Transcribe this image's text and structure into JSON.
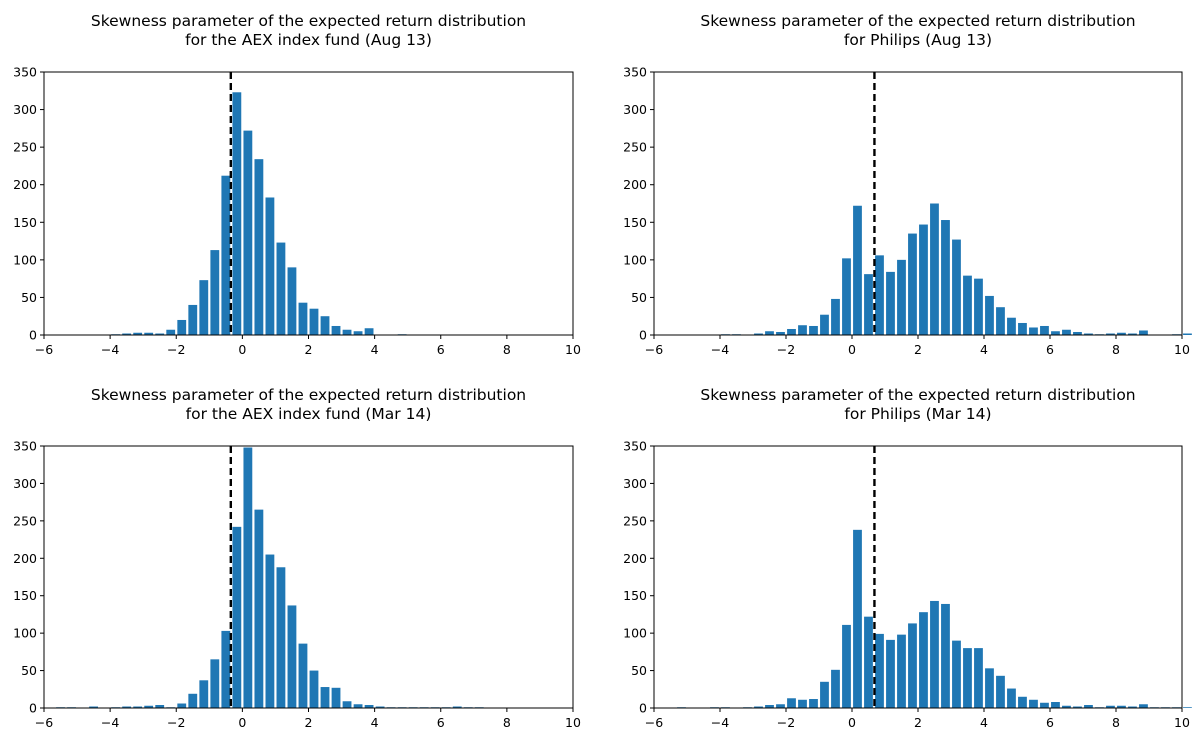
{
  "chart_data": [
    {
      "type": "bar",
      "title": "Skewness parameter of the expected return distribution\nfor the AEX index fund (Aug 13)",
      "xlabel": "",
      "ylabel": "",
      "xlim": [
        -6,
        10
      ],
      "ylim": [
        0,
        350
      ],
      "xticks": [
        -6,
        -4,
        -2,
        0,
        2,
        4,
        6,
        8,
        10
      ],
      "yticks": [
        0,
        50,
        100,
        150,
        200,
        250,
        300,
        350
      ],
      "bar_color": "#1f77b4",
      "bin_start": -6,
      "bin_width": 0.3333,
      "values": [
        0,
        0,
        0,
        0,
        0,
        0,
        1,
        2,
        3,
        3,
        2,
        7,
        20,
        40,
        73,
        113,
        212,
        323,
        272,
        234,
        183,
        123,
        90,
        43,
        35,
        25,
        12,
        7,
        5,
        9,
        0,
        0,
        1,
        0,
        0,
        0,
        0,
        0,
        0,
        0,
        0,
        0,
        0,
        0,
        0,
        0,
        0,
        0
      ],
      "reference_line": {
        "x": -0.35,
        "style": "dashed",
        "color": "#000000"
      }
    },
    {
      "type": "bar",
      "title": "Skewness parameter of the expected return distribution\nfor Philips (Aug 13)",
      "xlabel": "",
      "ylabel": "",
      "xlim": [
        -6,
        10
      ],
      "ylim": [
        0,
        350
      ],
      "xticks": [
        -6,
        -4,
        -2,
        0,
        2,
        4,
        6,
        8,
        10
      ],
      "yticks": [
        0,
        50,
        100,
        150,
        200,
        250,
        300,
        350
      ],
      "bar_color": "#1f77b4",
      "bin_start": -6,
      "bin_width": 0.3333,
      "values": [
        0,
        0,
        0,
        0,
        0,
        0,
        1,
        1,
        0,
        2,
        5,
        4,
        8,
        13,
        12,
        27,
        48,
        102,
        172,
        81,
        106,
        84,
        100,
        135,
        147,
        175,
        153,
        127,
        79,
        75,
        52,
        37,
        23,
        16,
        10,
        12,
        5,
        7,
        4,
        2,
        1,
        2,
        3,
        2,
        6,
        0,
        0,
        1,
        2
      ],
      "reference_line": {
        "x": 0.68,
        "style": "dashed",
        "color": "#000000"
      }
    },
    {
      "type": "bar",
      "title": "Skewness parameter of the expected return distribution\nfor the AEX index fund (Mar 14)",
      "xlabel": "",
      "ylabel": "",
      "xlim": [
        -6,
        10
      ],
      "ylim": [
        0,
        350
      ],
      "xticks": [
        -6,
        -4,
        -2,
        0,
        2,
        4,
        6,
        8,
        10
      ],
      "yticks": [
        0,
        50,
        100,
        150,
        200,
        250,
        300,
        350
      ],
      "bar_color": "#1f77b4",
      "bin_start": -6,
      "bin_width": 0.3333,
      "values": [
        0,
        1,
        1,
        0,
        2,
        0,
        1,
        2,
        2,
        3,
        4,
        1,
        6,
        19,
        37,
        65,
        103,
        242,
        348,
        265,
        205,
        188,
        137,
        86,
        50,
        28,
        27,
        9,
        5,
        4,
        2,
        1,
        1,
        1,
        1,
        1,
        1,
        2,
        1,
        1,
        0,
        0,
        0,
        0,
        0,
        0,
        0,
        0
      ],
      "reference_line": {
        "x": -0.35,
        "style": "dashed",
        "color": "#000000"
      }
    },
    {
      "type": "bar",
      "title": "Skewness parameter of the expected return distribution\nfor Philips (Mar 14)",
      "xlabel": "",
      "ylabel": "",
      "xlim": [
        -6,
        10
      ],
      "ylim": [
        0,
        350
      ],
      "xticks": [
        -6,
        -4,
        -2,
        0,
        2,
        4,
        6,
        8,
        10
      ],
      "yticks": [
        0,
        50,
        100,
        150,
        200,
        250,
        300,
        350
      ],
      "bar_color": "#1f77b4",
      "bin_start": -6,
      "bin_width": 0.3333,
      "values": [
        0,
        0,
        1,
        0,
        0,
        1,
        1,
        0,
        1,
        2,
        4,
        5,
        13,
        11,
        12,
        35,
        51,
        111,
        238,
        122,
        99,
        91,
        98,
        113,
        128,
        143,
        139,
        90,
        80,
        80,
        53,
        43,
        26,
        15,
        11,
        7,
        8,
        3,
        2,
        4,
        1,
        3,
        3,
        2,
        5,
        1,
        1,
        1,
        1
      ],
      "reference_line": {
        "x": 0.68,
        "style": "dashed",
        "color": "#000000"
      }
    }
  ]
}
